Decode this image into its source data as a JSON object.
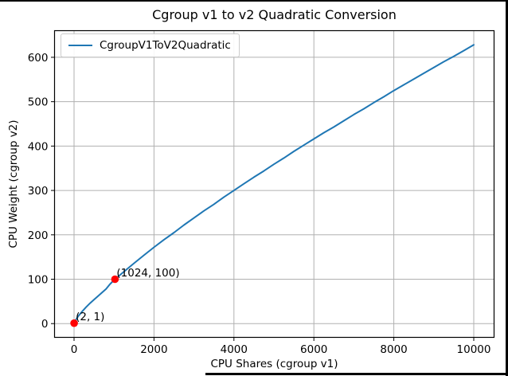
{
  "chart_data": {
    "type": "line",
    "title": "Cgroup v1 to v2 Quadratic Conversion",
    "xlabel": "CPU Shares (cgroup v1)",
    "ylabel": "CPU Weight (cgroup v2)",
    "grid": true,
    "legend": {
      "location": "upper left",
      "entries": [
        {
          "label": "CgroupV1ToV2Quadratic",
          "color": "#1f77b4"
        }
      ]
    },
    "x_ticks": [
      0,
      2000,
      4000,
      6000,
      8000,
      10000
    ],
    "y_ticks": [
      0,
      100,
      200,
      300,
      400,
      500,
      600
    ],
    "xlim": [
      -488,
      10508
    ],
    "ylim": [
      -31,
      660
    ],
    "series": [
      {
        "name": "CgroupV1ToV2Quadratic",
        "color": "#1f77b4",
        "points": [
          [
            2,
            1
          ],
          [
            50,
            9
          ],
          [
            100,
            16
          ],
          [
            200,
            27
          ],
          [
            300,
            37
          ],
          [
            400,
            46
          ],
          [
            500,
            54
          ],
          [
            650,
            66
          ],
          [
            800,
            78
          ],
          [
            900,
            89
          ],
          [
            1024,
            100
          ],
          [
            1250,
            117
          ],
          [
            1500,
            136
          ],
          [
            1750,
            154
          ],
          [
            2000,
            172
          ],
          [
            2250,
            189
          ],
          [
            2500,
            205
          ],
          [
            2750,
            222
          ],
          [
            3000,
            238
          ],
          [
            3250,
            254
          ],
          [
            3500,
            269
          ],
          [
            3750,
            285
          ],
          [
            4000,
            300
          ],
          [
            4250,
            315
          ],
          [
            4500,
            330
          ],
          [
            4750,
            344
          ],
          [
            5000,
            359
          ],
          [
            5250,
            373
          ],
          [
            5500,
            388
          ],
          [
            5750,
            402
          ],
          [
            6000,
            416
          ],
          [
            6250,
            430
          ],
          [
            6500,
            443
          ],
          [
            6750,
            457
          ],
          [
            7000,
            471
          ],
          [
            7250,
            484
          ],
          [
            7500,
            498
          ],
          [
            7750,
            511
          ],
          [
            8000,
            525
          ],
          [
            8250,
            538
          ],
          [
            8500,
            551
          ],
          [
            8750,
            564
          ],
          [
            9000,
            577
          ],
          [
            9250,
            590
          ],
          [
            9500,
            602
          ],
          [
            9750,
            615
          ],
          [
            10000,
            628
          ]
        ]
      }
    ],
    "annotated_points": [
      {
        "x": 2,
        "y": 1,
        "label": "(2, 1)",
        "color": "#ff0000"
      },
      {
        "x": 1024,
        "y": 100,
        "label": "(1024, 100)",
        "color": "#ff0000"
      }
    ],
    "colors": {
      "line": "#1f77b4",
      "marker": "#ff0000",
      "grid": "#b0b0b0",
      "spine": "#000000",
      "background": "#ffffff",
      "legend_border": "#cccccc",
      "window_border": "#000000"
    }
  }
}
